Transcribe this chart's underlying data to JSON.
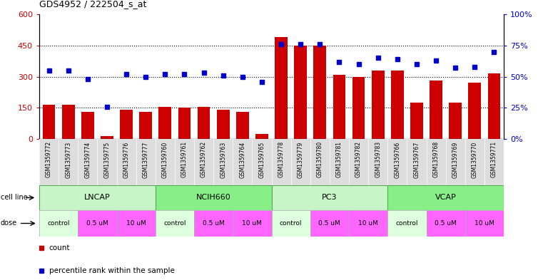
{
  "title": "GDS4952 / 222504_s_at",
  "samples": [
    "GSM1359772",
    "GSM1359773",
    "GSM1359774",
    "GSM1359775",
    "GSM1359776",
    "GSM1359777",
    "GSM1359760",
    "GSM1359761",
    "GSM1359762",
    "GSM1359763",
    "GSM1359764",
    "GSM1359765",
    "GSM1359778",
    "GSM1359779",
    "GSM1359780",
    "GSM1359781",
    "GSM1359782",
    "GSM1359783",
    "GSM1359766",
    "GSM1359767",
    "GSM1359768",
    "GSM1359769",
    "GSM1359770",
    "GSM1359771"
  ],
  "bar_values": [
    165,
    165,
    130,
    15,
    140,
    130,
    155,
    150,
    155,
    140,
    130,
    25,
    490,
    450,
    450,
    310,
    300,
    330,
    330,
    175,
    280,
    175,
    270,
    315
  ],
  "dot_values": [
    55,
    55,
    48,
    26,
    52,
    50,
    52,
    52,
    53,
    51,
    50,
    46,
    76,
    76,
    76,
    62,
    60,
    65,
    64,
    60,
    63,
    57,
    58,
    70
  ],
  "bar_color": "#cc0000",
  "dot_color": "#0000cc",
  "ylim_left": [
    0,
    600
  ],
  "ylim_right": [
    0,
    100
  ],
  "yticks_left": [
    0,
    150,
    300,
    450,
    600
  ],
  "yticks_right": [
    0,
    25,
    50,
    75,
    100
  ],
  "ytick_labels_right": [
    "0%",
    "25%",
    "50%",
    "75%",
    "100%"
  ],
  "hlines": [
    150,
    300,
    450
  ],
  "cell_lines": [
    "LNCAP",
    "NCIH660",
    "PC3",
    "VCAP"
  ],
  "cell_line_spans": [
    [
      0,
      6
    ],
    [
      6,
      12
    ],
    [
      12,
      18
    ],
    [
      18,
      24
    ]
  ],
  "cell_line_colors": [
    "#ccffcc",
    "#aaffaa",
    "#ccffcc",
    "#44dd44"
  ],
  "dose_sequence": [
    "control",
    "0.5 uM",
    "10 uM",
    "control",
    "0.5 uM",
    "10 uM",
    "control",
    "0.5 uM",
    "10 uM",
    "control",
    "0.5 uM",
    "10 uM"
  ],
  "dose_color_control": "#ddffdd",
  "dose_color_other": "#ff66ff",
  "xticklabel_bg": "#dddddd",
  "legend_count_color": "#cc0000",
  "legend_dot_color": "#0000cc"
}
